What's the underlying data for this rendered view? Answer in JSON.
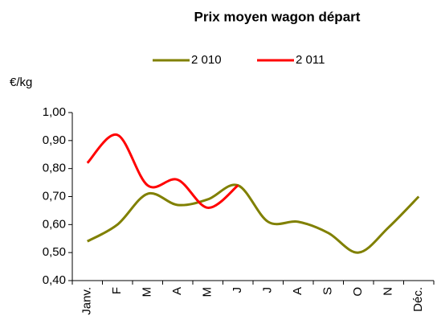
{
  "chart_data": {
    "type": "line",
    "title": "Prix moyen wagon départ",
    "y_label": "€/kg",
    "categories": [
      "Janv.",
      "F",
      "M",
      "A",
      "M",
      "J",
      "J",
      "A",
      "S",
      "O",
      "N",
      "Déc."
    ],
    "series": [
      {
        "name": "2 010",
        "color": "#808000",
        "values": [
          0.54,
          0.6,
          0.71,
          0.67,
          0.69,
          0.74,
          0.61,
          0.61,
          0.57,
          0.5,
          0.59,
          0.7
        ]
      },
      {
        "name": "2 011",
        "color": "#ff0000",
        "values": [
          0.82,
          0.92,
          0.74,
          0.76,
          0.66,
          0.74,
          null,
          null,
          null,
          null,
          null,
          null
        ]
      }
    ],
    "ylim": [
      0.4,
      1.0
    ],
    "yticks": [
      {
        "value": 0.4,
        "label": "0,40"
      },
      {
        "value": 0.5,
        "label": "0,50"
      },
      {
        "value": 0.6,
        "label": "0,60"
      },
      {
        "value": 0.7,
        "label": "0,70"
      },
      {
        "value": 0.8,
        "label": "0,80"
      },
      {
        "value": 0.9,
        "label": "0,90"
      },
      {
        "value": 1.0,
        "label": "1,00"
      }
    ],
    "legend": "top",
    "grid": false
  }
}
